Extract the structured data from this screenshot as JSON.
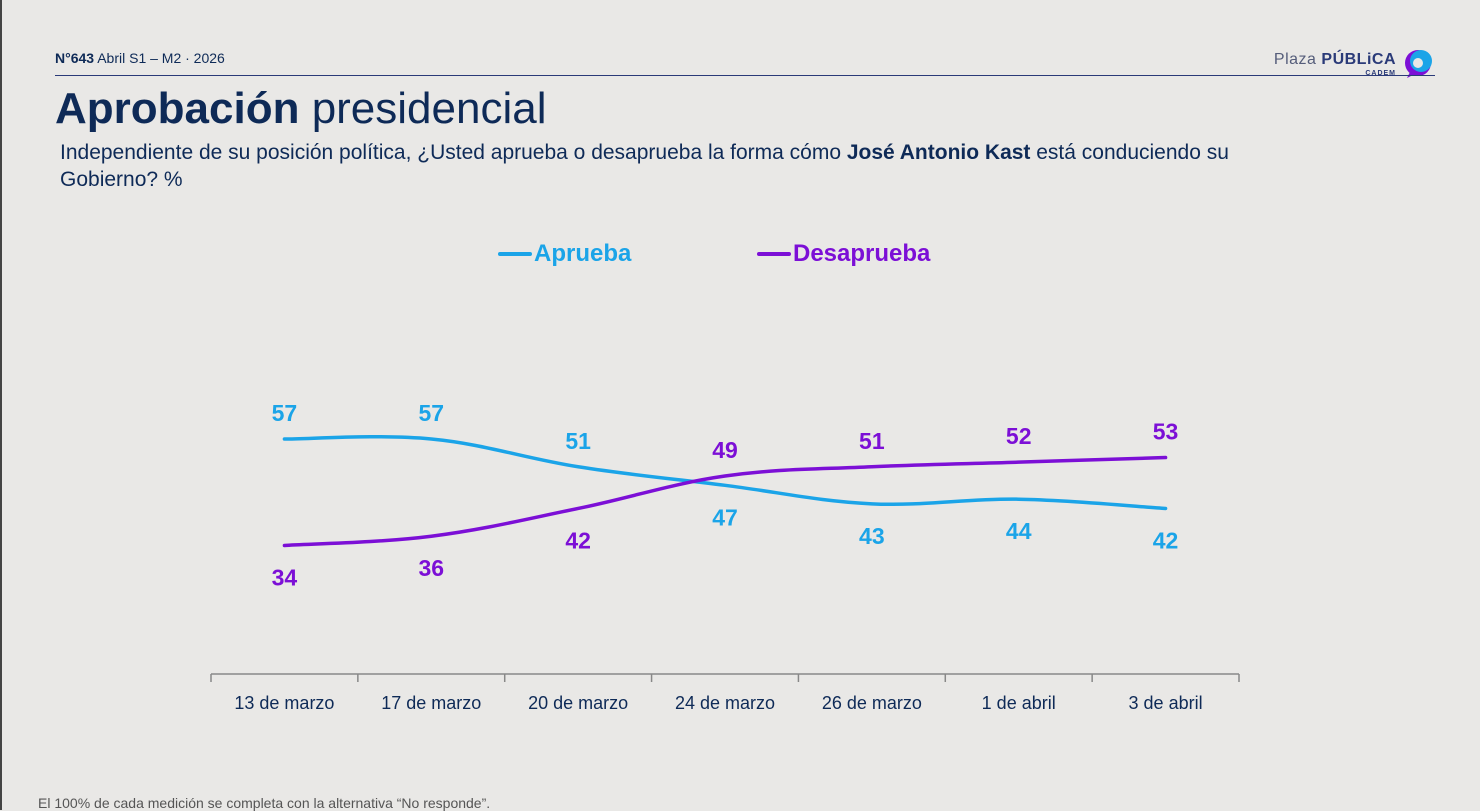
{
  "header": {
    "issue_number": "N°643",
    "issue_rest": "Abril S1 – M2 · 2026",
    "logo_light": "Plaza",
    "logo_bold": "PÚBLiCA",
    "logo_sub": "CADEM"
  },
  "title": {
    "bold": "Aprobación",
    "light": "presidencial"
  },
  "question": {
    "part1": "Independiente de su posición política, ¿Usted aprueba o desaprueba la forma cómo ",
    "bold": "José Antonio Kast",
    "part2": " está conduciendo su Gobierno? %"
  },
  "footnote": "El 100% de cada medición se completa con la alternativa “No responde”.",
  "colors": {
    "aprueba": "#1ba4e8",
    "desaprueba": "#7c0fd6",
    "axis": "#888888",
    "text": "#0e2a57"
  },
  "chart_data": {
    "type": "line",
    "categories": [
      "13 de marzo",
      "17 de marzo",
      "20 de marzo",
      "24 de marzo",
      "26 de marzo",
      "1 de abril",
      "3 de abril"
    ],
    "series": [
      {
        "name": "Aprueba",
        "values": [
          57,
          57,
          51,
          47,
          43,
          44,
          42
        ]
      },
      {
        "name": "Desaprueba",
        "values": [
          34,
          36,
          42,
          49,
          51,
          52,
          53
        ]
      }
    ],
    "legend": "top-center",
    "grid": false
  }
}
